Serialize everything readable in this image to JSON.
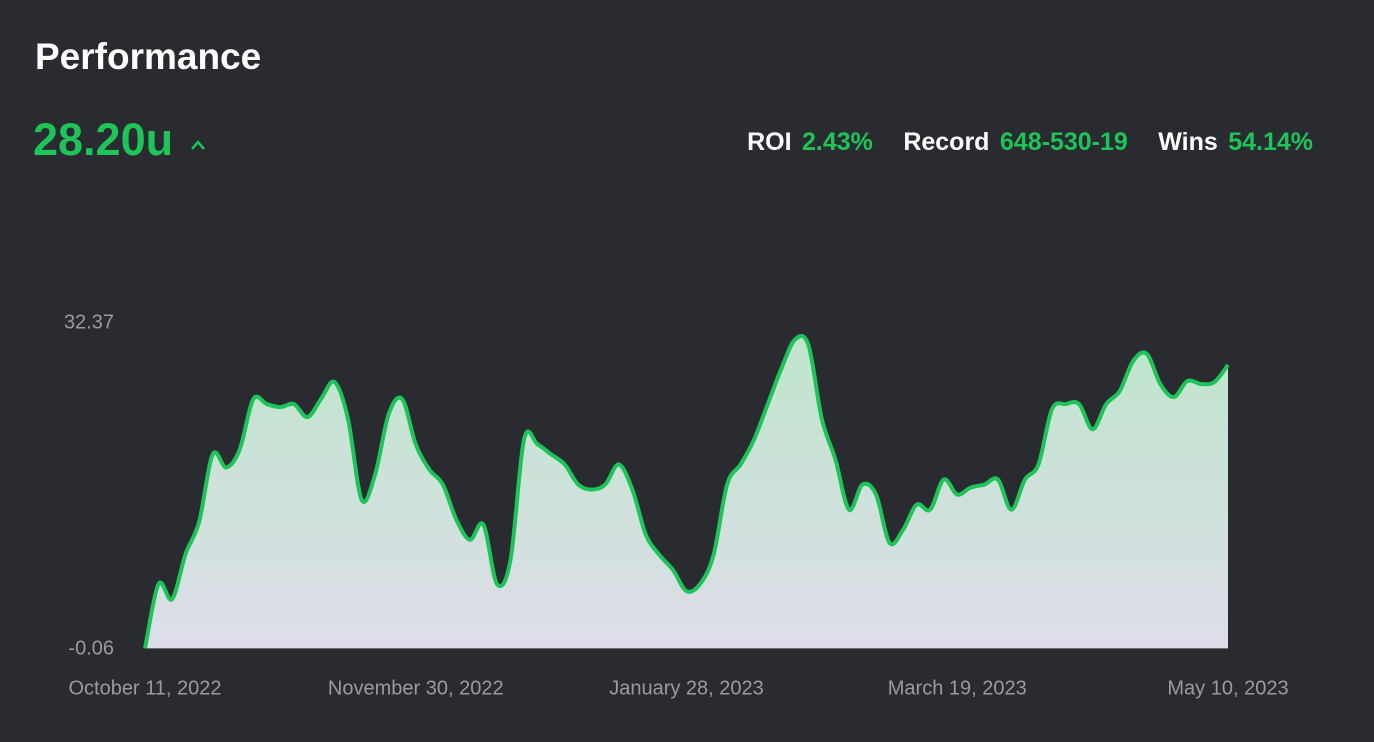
{
  "header": {
    "title": "Performance",
    "units": "28.20u",
    "stats": [
      {
        "label": "ROI",
        "value": "2.43%"
      },
      {
        "label": "Record",
        "value": "648-530-19"
      },
      {
        "label": "Wins",
        "value": "54.14%"
      }
    ]
  },
  "chart_data": {
    "type": "area",
    "color": "#1dc458",
    "categories": [
      "October 11, 2022",
      null,
      null,
      null,
      null,
      null,
      null,
      null,
      null,
      null,
      null,
      null,
      null,
      null,
      null,
      null,
      null,
      null,
      null,
      null,
      "November 30, 2022",
      null,
      null,
      null,
      null,
      null,
      null,
      null,
      null,
      null,
      null,
      null,
      null,
      null,
      null,
      null,
      null,
      null,
      null,
      null,
      "January 28, 2023",
      null,
      null,
      null,
      null,
      null,
      null,
      null,
      null,
      null,
      null,
      null,
      null,
      null,
      null,
      null,
      null,
      null,
      null,
      null,
      "March 19, 2023",
      null,
      null,
      null,
      null,
      null,
      null,
      null,
      null,
      null,
      null,
      null,
      null,
      null,
      null,
      null,
      null,
      null,
      null,
      null,
      "May 10, 2023"
    ],
    "values": [
      0,
      6.4,
      4.9,
      9.4,
      12.6,
      19.3,
      18,
      19.8,
      24.8,
      24.3,
      24,
      24.3,
      23,
      24.8,
      26.5,
      22.8,
      14.8,
      17.3,
      23.3,
      24.8,
      20.3,
      17.8,
      16.3,
      12.8,
      10.8,
      12.3,
      6.4,
      8.8,
      20.8,
      20.3,
      19.3,
      18.3,
      16.3,
      15.8,
      16.3,
      18.3,
      15.8,
      11.3,
      9.3,
      7.8,
      5.7,
      6.4,
      9.3,
      16.3,
      18.3,
      20.8,
      24.3,
      27.8,
      30.7,
      30.2,
      22.8,
      18.8,
      13.8,
      16.3,
      15.3,
      10.5,
      11.8,
      14.3,
      13.8,
      16.8,
      15.3,
      16,
      16.3,
      16.8,
      13.8,
      16.8,
      18.3,
      23.8,
      24.3,
      24.3,
      21.8,
      24.3,
      25.6,
      28.6,
      29.3,
      26.3,
      25,
      26.6,
      26.3,
      26.5,
      28.2
    ],
    "ylim": [
      -0.06,
      32.37
    ],
    "yticks": [
      32.37,
      -0.06
    ],
    "grid": false
  }
}
